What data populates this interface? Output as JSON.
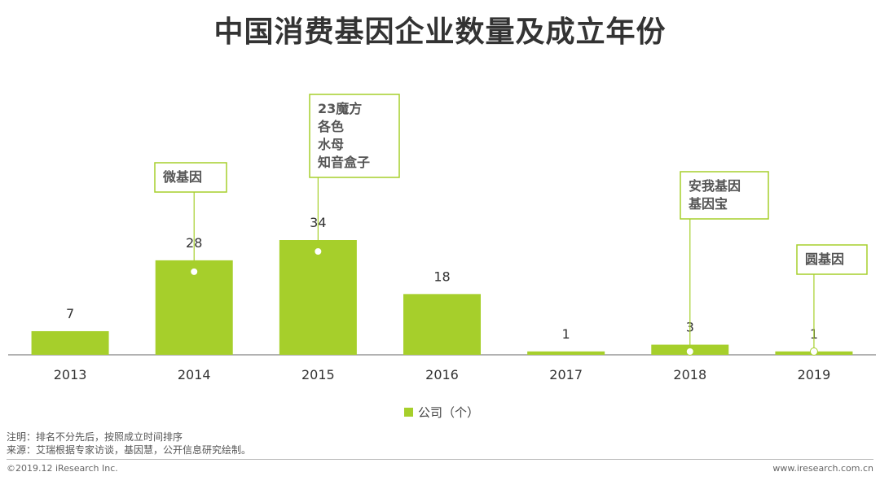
{
  "title": "中国消费基因企业数量及成立年份",
  "chart_data": {
    "type": "bar",
    "title": "中国消费基因企业数量及成立年份",
    "categories": [
      "2013",
      "2014",
      "2015",
      "2016",
      "2017",
      "2018",
      "2019"
    ],
    "series": [
      {
        "name": "公司（个）",
        "values": [
          7,
          28,
          34,
          18,
          1,
          3,
          1
        ]
      }
    ],
    "xlabel": "",
    "ylabel": "",
    "ylim": [
      0,
      40
    ],
    "legend": "bottom-center",
    "grid": false,
    "annotations": [
      {
        "category": "2014",
        "lines": [
          "微基因"
        ]
      },
      {
        "category": "2015",
        "lines": [
          "23魔方",
          "各色",
          "水母",
          "知音盒子"
        ]
      },
      {
        "category": "2018",
        "lines": [
          "安我基因",
          "基因宝"
        ]
      },
      {
        "category": "2019",
        "lines": [
          "圆基因"
        ]
      }
    ],
    "colors": {
      "bar": "#a6cf2b"
    }
  },
  "legend_label": "公司（个）",
  "notes": {
    "line1": "注明：排名不分先后，按照成立时间排序",
    "line2": "来源：艾瑞根据专家访谈，基因慧，公开信息研究绘制。"
  },
  "footer": {
    "copyright": "©2019.12 iResearch Inc.",
    "website": "www.iresearch.com.cn"
  }
}
